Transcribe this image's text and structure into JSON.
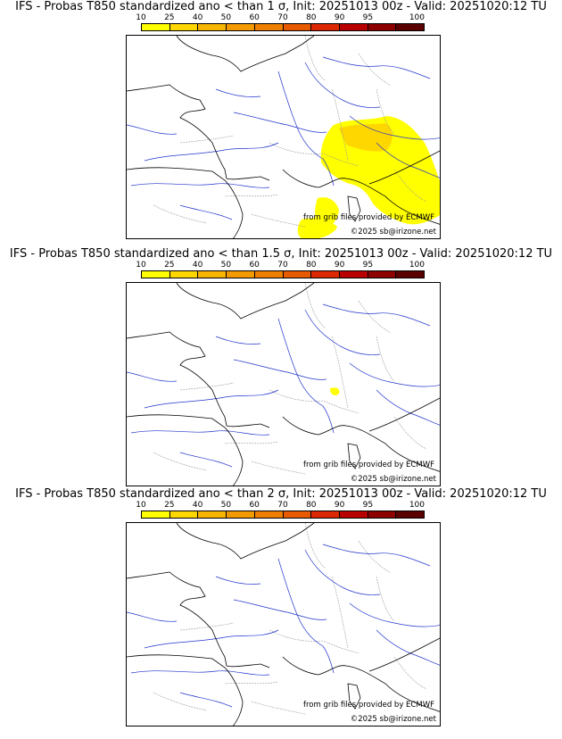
{
  "colorbar": {
    "labels": [
      "10",
      "25",
      "40",
      "50",
      "60",
      "70",
      "80",
      "90",
      "95",
      "100"
    ],
    "colors": [
      "#ffff00",
      "#ffd700",
      "#f7b500",
      "#f39a00",
      "#ee7f00",
      "#e85a00",
      "#dc2800",
      "#b80000",
      "#8c0000",
      "#5a0000"
    ]
  },
  "panels": [
    {
      "title": "IFS - Probas T850  standardized ano < than 1 σ, Init: 20251013 00z - Valid: 20251020:12 TU",
      "source_credit": "from grib files provided by ECMWF",
      "copyright": "©2025 sb@irizone.net",
      "anomaly_level": "heavy"
    },
    {
      "title": "IFS - Probas T850  standardized ano < than 1.5 σ, Init: 20251013 00z - Valid: 20251020:12 TU",
      "source_credit": "from grib files provided by ECMWF",
      "copyright": "©2025 sb@irizone.net",
      "anomaly_level": "trace"
    },
    {
      "title": "IFS - Probas T850  standardized ano < than 2 σ, Init: 20251013 00z - Valid: 20251020:12 TU",
      "source_credit": "from grib files provided by ECMWF",
      "copyright": "©2025 sb@irizone.net",
      "anomaly_level": "none"
    }
  ],
  "map_colors": {
    "coast": "#000000",
    "rivers": "#2233cc",
    "borders": "#999999",
    "probability_fill": "#ffff00",
    "probability_fill_high": "#ffd700"
  }
}
